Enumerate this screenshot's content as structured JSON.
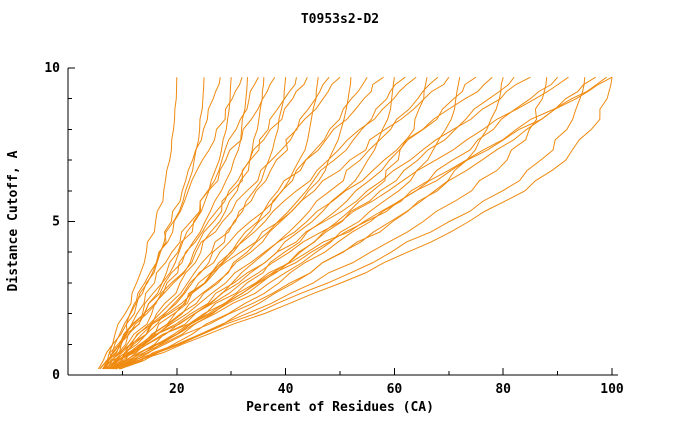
{
  "chart_data": {
    "type": "line",
    "title": "T0953s2-D2",
    "xlabel": "Percent of Residues (CA)",
    "ylabel": "Distance Cutoff, A",
    "xlim": [
      0,
      100
    ],
    "ylim": [
      0,
      10
    ],
    "x_ticks": [
      20,
      40,
      60,
      80,
      100
    ],
    "x_minor_ticks": [
      10,
      30,
      50,
      70,
      90
    ],
    "y_ticks": [
      0,
      5,
      10
    ],
    "y_minor_ticks": [
      1,
      2,
      3,
      4,
      6,
      7,
      8,
      9
    ],
    "grid": false,
    "legend": null,
    "line_color": "#ef8a10",
    "axis_color": "#000000",
    "y_levels": [
      0.2,
      1,
      2,
      3,
      4,
      5,
      6,
      7,
      8,
      9,
      9.7
    ],
    "series": [
      {
        "x": [
          6.4,
          8.2,
          10.5,
          12.6,
          14.4,
          16.1,
          17.6,
          18.7,
          19.4,
          19.9,
          20
        ]
      },
      {
        "x": [
          5.6,
          8.2,
          11.4,
          14.4,
          17.0,
          19.4,
          21.6,
          23.2,
          24.2,
          24.8,
          25
        ]
      },
      {
        "x": [
          6.9,
          9.5,
          12.2,
          14.6,
          16.8,
          19.0,
          21.0,
          22.9,
          24.9,
          26.7,
          28
        ]
      },
      {
        "x": [
          6.7,
          9.8,
          13.7,
          17.3,
          20.4,
          23.3,
          25.9,
          27.8,
          29.1,
          29.8,
          30
        ]
      },
      {
        "x": [
          6.5,
          8.6,
          11.5,
          14.1,
          16.7,
          19.5,
          22.1,
          24.7,
          27.3,
          30.2,
          32
        ]
      },
      {
        "x": [
          5.8,
          9.5,
          14.0,
          18.2,
          21.8,
          25.2,
          28.2,
          30.5,
          31.9,
          32.7,
          33
        ]
      },
      {
        "x": [
          7.2,
          10.6,
          14.1,
          17.3,
          20.2,
          23.1,
          25.7,
          28.3,
          30.9,
          33.3,
          35
        ]
      },
      {
        "x": [
          7.9,
          11.6,
          16.3,
          20.6,
          24.4,
          27.9,
          31.1,
          33.4,
          34.8,
          35.7,
          36
        ]
      },
      {
        "x": [
          6.6,
          9.2,
          12.7,
          15.9,
          19.1,
          22.6,
          25.8,
          29.0,
          32.2,
          35.8,
          38
        ]
      },
      {
        "x": [
          7.0,
          11.4,
          16.9,
          22.0,
          26.4,
          30.5,
          34.2,
          36.9,
          38.6,
          39.7,
          40
        ]
      },
      {
        "x": [
          6.5,
          10.9,
          15.4,
          19.4,
          23.1,
          26.8,
          30.2,
          33.5,
          36.8,
          39.8,
          42
        ]
      },
      {
        "x": [
          6.8,
          9.8,
          14.0,
          17.8,
          21.6,
          25.8,
          29.6,
          33.4,
          37.2,
          41.3,
          44
        ]
      },
      {
        "x": [
          8.2,
          13.2,
          19.5,
          25.3,
          30.4,
          35.1,
          39.4,
          42.5,
          44.4,
          45.6,
          46
        ]
      },
      {
        "x": [
          7.7,
          12.7,
          17.8,
          22.4,
          26.6,
          30.8,
          34.6,
          38.3,
          42.1,
          45.5,
          48
        ]
      },
      {
        "x": [
          5.9,
          9.5,
          14.5,
          19.0,
          23.5,
          28.4,
          32.9,
          37.4,
          41.9,
          46.9,
          50
        ]
      },
      {
        "x": [
          7.4,
          13.4,
          20.7,
          27.6,
          33.6,
          39.1,
          44.2,
          47.9,
          50.2,
          51.5,
          52
        ]
      },
      {
        "x": [
          8.0,
          13.8,
          19.7,
          25.1,
          30.0,
          34.9,
          39.3,
          43.7,
          48.1,
          52.1,
          55
        ]
      },
      {
        "x": [
          8.0,
          12.1,
          17.7,
          22.8,
          27.9,
          33.5,
          38.6,
          43.7,
          48.8,
          54.4,
          58
        ]
      },
      {
        "x": [
          7.6,
          14.6,
          23.3,
          31.4,
          38.4,
          44.9,
          50.8,
          55.1,
          57.8,
          59.5,
          60
        ]
      },
      {
        "x": [
          7.3,
          14.1,
          21.0,
          27.2,
          32.9,
          38.6,
          43.8,
          48.9,
          54.0,
          58.6,
          62
        ]
      },
      {
        "x": [
          7.2,
          11.8,
          18.2,
          24.0,
          29.8,
          36.2,
          42.0,
          47.8,
          53.6,
          59.9,
          64
        ]
      },
      {
        "x": [
          8.8,
          16.4,
          25.9,
          34.7,
          42.4,
          49.5,
          56.0,
          60.7,
          63.6,
          65.4,
          66
        ]
      },
      {
        "x": [
          8.5,
          15.9,
          23.4,
          30.2,
          36.4,
          42.6,
          48.2,
          53.7,
          59.3,
          64.3,
          68
        ]
      },
      {
        "x": [
          6.3,
          11.5,
          18.7,
          25.2,
          31.7,
          38.8,
          45.3,
          51.8,
          58.3,
          65.5,
          70
        ]
      },
      {
        "x": [
          8.0,
          16.6,
          27.1,
          37.0,
          45.6,
          53.5,
          60.8,
          66.1,
          69.4,
          71.3,
          72
        ]
      },
      {
        "x": [
          8.8,
          17.0,
          25.3,
          32.9,
          39.8,
          46.7,
          52.9,
          59.1,
          65.3,
          70.9,
          75
        ]
      },
      {
        "x": [
          8.4,
          14.1,
          21.9,
          29.0,
          36.1,
          43.9,
          51.0,
          58.1,
          65.2,
          73.0,
          78
        ]
      },
      {
        "x": [
          8.2,
          17.8,
          29.7,
          40.8,
          50.4,
          59.3,
          67.4,
          73.3,
          77.0,
          79.3,
          80
        ]
      },
      {
        "x": [
          8.1,
          17.3,
          26.6,
          35.0,
          42.7,
          50.4,
          57.4,
          64.3,
          71.2,
          77.4,
          82
        ]
      },
      {
        "x": [
          7.6,
          13.9,
          22.6,
          30.5,
          38.4,
          47.1,
          55.0,
          62.9,
          70.8,
          79.5,
          85
        ]
      },
      {
        "x": [
          9.4,
          20.0,
          32.9,
          45.1,
          55.6,
          65.3,
          74.2,
          80.7,
          84.8,
          87.2,
          88
        ]
      },
      {
        "x": [
          9.4,
          19.4,
          29.5,
          38.8,
          47.2,
          55.6,
          63.1,
          70.7,
          78.2,
          85.0,
          90
        ]
      },
      {
        "x": [
          6.7,
          13.7,
          23.3,
          32.0,
          40.7,
          50.2,
          58.9,
          67.6,
          76.3,
          85.9,
          92
        ]
      },
      {
        "x": [
          8.7,
          20.2,
          34.5,
          47.8,
          59.4,
          70.1,
          79.9,
          86.9,
          91.7,
          94.1,
          95
        ]
      },
      {
        "x": [
          9.6,
          20.6,
          31.5,
          41.5,
          50.6,
          59.7,
          67.9,
          76.1,
          84.3,
          91.5,
          97
        ]
      },
      {
        "x": [
          8.8,
          16.2,
          26.3,
          35.5,
          44.7,
          54.8,
          64.0,
          73.2,
          82.4,
          92.6,
          99
        ]
      },
      {
        "x": [
          8.8,
          21.0,
          36.1,
          50.2,
          62.4,
          73.7,
          84.0,
          91.5,
          96.2,
          99.1,
          100
        ]
      },
      {
        "x": [
          6.9,
          14.5,
          25.0,
          34.5,
          44.0,
          54.4,
          63.9,
          73.4,
          82.9,
          93.4,
          100
        ]
      }
    ]
  }
}
